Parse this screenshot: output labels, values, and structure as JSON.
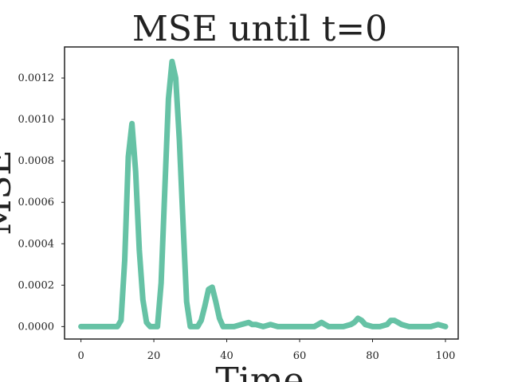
{
  "chart_data": {
    "type": "line",
    "title": "MSE until t=0",
    "xlabel": "Time",
    "ylabel": "MSE",
    "xlim": [
      -4.5,
      103.5
    ],
    "ylim": [
      -6e-05,
      0.00135
    ],
    "xticks": [
      0,
      20,
      40,
      60,
      80,
      100
    ],
    "xtick_labels": [
      "0",
      "20",
      "40",
      "60",
      "80",
      "100"
    ],
    "yticks": [
      0,
      0.0002,
      0.0004,
      0.0006,
      0.0008,
      0.001,
      0.0012
    ],
    "ytick_labels": [
      "0.0000",
      "0.0002",
      "0.0004",
      "0.0006",
      "0.0008",
      "0.0010",
      "0.0012"
    ],
    "grid": false,
    "legend": "none",
    "series": [
      {
        "color": "#66c2a5",
        "x": [
          0,
          2,
          4,
          6,
          8,
          10,
          11,
          12,
          13,
          14,
          15,
          16,
          17,
          18,
          19,
          20,
          21,
          22,
          23,
          24,
          25,
          26,
          27,
          28,
          29,
          30,
          31,
          32,
          33,
          34,
          35,
          36,
          37,
          38,
          39,
          40,
          42,
          44,
          46,
          47,
          48,
          50,
          52,
          54,
          56,
          58,
          60,
          62,
          64,
          66,
          68,
          70,
          72,
          74,
          75,
          76,
          77,
          78,
          80,
          82,
          84,
          85,
          86,
          87,
          88,
          90,
          92,
          94,
          96,
          98,
          100
        ],
        "y": [
          0,
          0,
          0,
          0,
          0,
          0,
          3e-05,
          0.00032,
          0.00082,
          0.00098,
          0.00075,
          0.00037,
          0.00013,
          2e-05,
          0,
          0,
          0,
          0.00021,
          0.00066,
          0.0011,
          0.00128,
          0.0012,
          0.0009,
          0.0005,
          0.00012,
          0,
          0,
          0,
          3e-05,
          0.0001,
          0.00018,
          0.00019,
          0.00012,
          4e-05,
          0,
          0,
          0,
          1e-05,
          2e-05,
          1e-05,
          1e-05,
          0,
          1e-05,
          0,
          0,
          0,
          0,
          0,
          0,
          2e-05,
          0,
          0,
          0,
          1e-05,
          2e-05,
          4e-05,
          3e-05,
          1e-05,
          0,
          0,
          1e-05,
          3e-05,
          3e-05,
          2e-05,
          1e-05,
          0,
          0,
          0,
          0,
          1e-05,
          0
        ]
      }
    ]
  }
}
